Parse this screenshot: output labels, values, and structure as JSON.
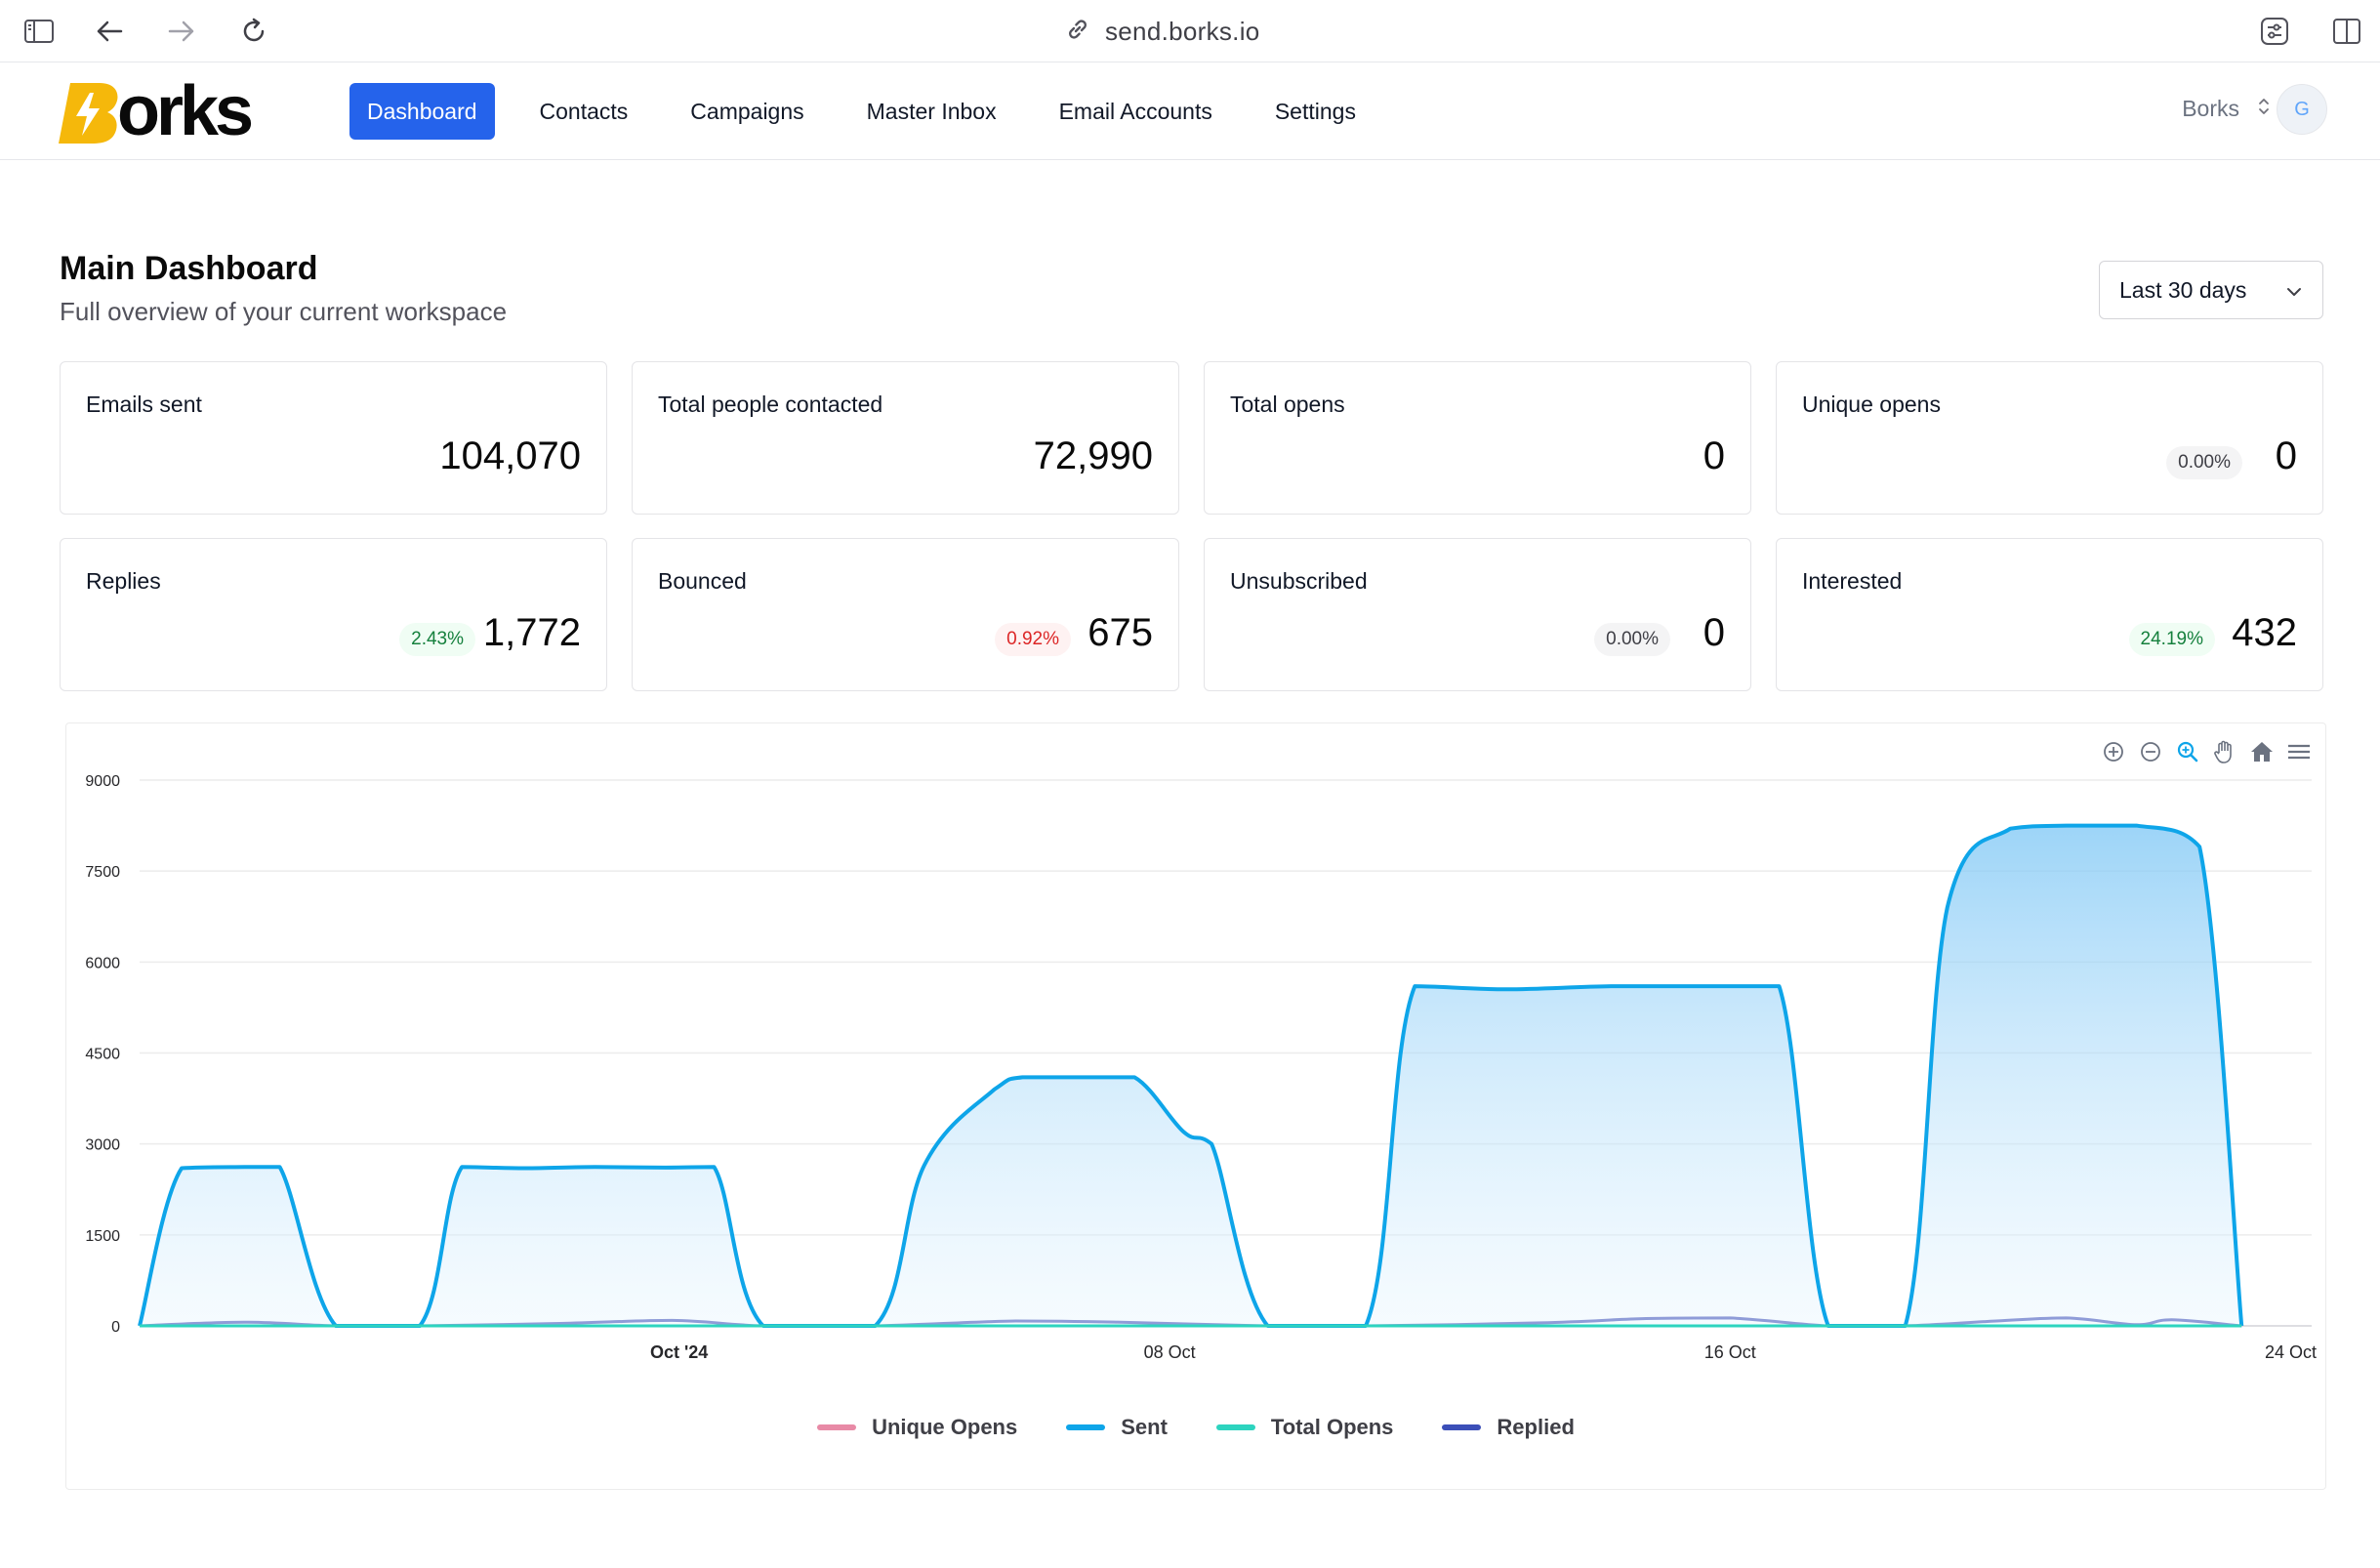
{
  "browser": {
    "url": "send.borks.io"
  },
  "brand": {
    "logo_text": "orks",
    "logo_letter": "B",
    "accent": "#2563eb",
    "logo_color": "#f5b80b"
  },
  "nav": {
    "items": [
      {
        "label": "Dashboard",
        "active": true
      },
      {
        "label": "Contacts"
      },
      {
        "label": "Campaigns"
      },
      {
        "label": "Master Inbox"
      },
      {
        "label": "Email Accounts"
      },
      {
        "label": "Settings"
      }
    ]
  },
  "workspace": {
    "name": "Borks",
    "avatar_initial": "G"
  },
  "page": {
    "title": "Main Dashboard",
    "subtitle": "Full overview of your current workspace",
    "range_select": "Last 30 days"
  },
  "stats": [
    {
      "label": "Emails sent",
      "value": "104,070"
    },
    {
      "label": "Total people contacted",
      "value": "72,990"
    },
    {
      "label": "Total opens",
      "value": "0"
    },
    {
      "label": "Unique opens",
      "value": "0",
      "pct": "0.00%",
      "tone": "gray"
    },
    {
      "label": "Replies",
      "value": "1,772",
      "pct": "2.43%",
      "tone": "green"
    },
    {
      "label": "Bounced",
      "value": "675",
      "pct": "0.92%",
      "tone": "red"
    },
    {
      "label": "Unsubscribed",
      "value": "0",
      "pct": "0.00%",
      "tone": "gray"
    },
    {
      "label": "Interested",
      "value": "432",
      "pct": "24.19%",
      "tone": "green"
    }
  ],
  "chart_toolbar": [
    "zoom-in-icon",
    "zoom-out-icon",
    "selection-zoom-icon",
    "pan-hand-icon",
    "reset-home-icon",
    "menu-icon"
  ],
  "chart_data": {
    "type": "area",
    "y_ticks": [
      "9000",
      "7500",
      "6000",
      "4500",
      "3000",
      "1500",
      "0"
    ],
    "ylim": [
      0,
      9000
    ],
    "x_range_days": [
      0,
      31
    ],
    "x_ticks": [
      {
        "label": "Oct '24",
        "day": 7.7,
        "bold": true
      },
      {
        "label": "08 Oct",
        "day": 14.7
      },
      {
        "label": "16 Oct",
        "day": 22.7
      },
      {
        "label": "24 Oct",
        "day": 30.7
      }
    ],
    "grid": true,
    "legend_position": "bottom",
    "series": [
      {
        "name": "Sent",
        "color": "#0ea5e9",
        "points": [
          [
            0,
            0
          ],
          [
            0.6,
            2600
          ],
          [
            1.5,
            2620
          ],
          [
            2,
            2620
          ],
          [
            2.8,
            0
          ],
          [
            4,
            0
          ],
          [
            4.6,
            2620
          ],
          [
            5.5,
            2600
          ],
          [
            6.5,
            2620
          ],
          [
            7.5,
            2610
          ],
          [
            8.2,
            2620
          ],
          [
            8.9,
            0
          ],
          [
            10.5,
            0
          ],
          [
            11.2,
            2650
          ],
          [
            12.2,
            3900
          ],
          [
            12.6,
            4100
          ],
          [
            13.5,
            4100
          ],
          [
            14.2,
            4100
          ],
          [
            14.9,
            3200
          ],
          [
            15.3,
            3000
          ],
          [
            16.1,
            0
          ],
          [
            17.5,
            0
          ],
          [
            18.2,
            5600
          ],
          [
            19.5,
            5550
          ],
          [
            21,
            5600
          ],
          [
            22.5,
            5600
          ],
          [
            23.4,
            5600
          ],
          [
            24.1,
            0
          ],
          [
            25.2,
            0
          ],
          [
            25.8,
            6900
          ],
          [
            26.7,
            8200
          ],
          [
            27.5,
            8250
          ],
          [
            28.5,
            8250
          ],
          [
            29.4,
            7900
          ],
          [
            30,
            0
          ]
        ]
      },
      {
        "name": "Replied",
        "color": "#3b4fb8",
        "points": [
          [
            0,
            0
          ],
          [
            1.5,
            60
          ],
          [
            2.8,
            0
          ],
          [
            4,
            0
          ],
          [
            6,
            40
          ],
          [
            7.6,
            90
          ],
          [
            8.9,
            0
          ],
          [
            10.5,
            0
          ],
          [
            12.5,
            80
          ],
          [
            14,
            60
          ],
          [
            16.1,
            0
          ],
          [
            17.5,
            0
          ],
          [
            20,
            50
          ],
          [
            21.5,
            120
          ],
          [
            22.7,
            130
          ],
          [
            24.1,
            0
          ],
          [
            25.2,
            0
          ],
          [
            26.5,
            80
          ],
          [
            27.5,
            130
          ],
          [
            28.5,
            20
          ],
          [
            29,
            100
          ],
          [
            30,
            0
          ]
        ]
      },
      {
        "name": "Unique Opens",
        "color": "#f472b6",
        "points": [
          [
            0,
            0
          ],
          [
            30,
            0
          ]
        ]
      },
      {
        "name": "Total Opens",
        "color": "#2dd4bf",
        "points": [
          [
            0,
            0
          ],
          [
            30,
            0
          ]
        ]
      }
    ],
    "legend": [
      {
        "name": "Unique Opens",
        "color": "#e88aa6"
      },
      {
        "name": "Sent",
        "color": "#0ea5e9"
      },
      {
        "name": "Total Opens",
        "color": "#2dd4bf"
      },
      {
        "name": "Replied",
        "color": "#3b4fb8"
      }
    ]
  }
}
